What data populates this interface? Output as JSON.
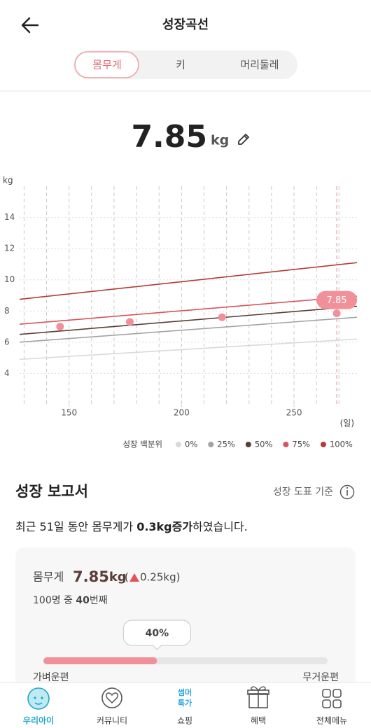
{
  "header": {
    "title": "성장곡선"
  },
  "tabs": [
    "몸무게",
    "키",
    "머리둘레"
  ],
  "current": {
    "value": 7.85,
    "unit": "kg"
  },
  "chart_data": {
    "type": "line",
    "ylabel": "kg",
    "xlabel": "(일)",
    "xlim": [
      128,
      278
    ],
    "ylim": [
      2,
      16
    ],
    "xticks": [
      150,
      200,
      250
    ],
    "yticks": [
      4,
      6,
      8,
      10,
      12,
      14
    ],
    "xgrid": [
      130,
      140,
      150,
      160,
      170,
      180,
      190,
      200,
      210,
      220,
      230,
      240,
      250,
      260,
      270
    ],
    "current_x": 269,
    "grid": true,
    "legend_title": "성장 백분위",
    "series": [
      {
        "name": "0%",
        "color": "#d9d9d9",
        "x": [
          128,
          278
        ],
        "values": [
          4.9,
          6.2
        ]
      },
      {
        "name": "25%",
        "color": "#a3a3a3",
        "x": [
          128,
          278
        ],
        "values": [
          6.0,
          7.6
        ]
      },
      {
        "name": "50%",
        "color": "#5b3d38",
        "x": [
          128,
          278
        ],
        "values": [
          6.5,
          8.3
        ]
      },
      {
        "name": "75%",
        "color": "#d9545a",
        "x": [
          128,
          278
        ],
        "values": [
          7.15,
          8.95
        ]
      },
      {
        "name": "100%",
        "color": "#b33b35",
        "x": [
          128,
          278
        ],
        "values": [
          8.75,
          11.1
        ]
      }
    ],
    "points": {
      "color": "#f0919a",
      "x": [
        146,
        177,
        218,
        269
      ],
      "values": [
        7.0,
        7.3,
        7.6,
        7.85
      ]
    }
  },
  "report": {
    "title": "성장 보고서",
    "basis": "성장 도표 기준",
    "sentence": [
      "최근 51일 동안 몸무게가 ",
      "0.3kg증가",
      "하였습니다."
    ],
    "card": {
      "label": "몸무게",
      "value": "7.85",
      "unit": "kg",
      "change_open": "(",
      "change": "0.25kg)",
      "rank": [
        "100명 중 ",
        "40",
        "번째"
      ],
      "rank_bar": {
        "value": 40,
        "label": "40%"
      },
      "left": "가벼운편",
      "right": "무거운편"
    }
  },
  "nav": [
    "우리아이",
    "커뮤니티",
    "쇼핑",
    "혜택",
    "전체메뉴"
  ],
  "shop_badge": [
    "썸머",
    "특가"
  ]
}
